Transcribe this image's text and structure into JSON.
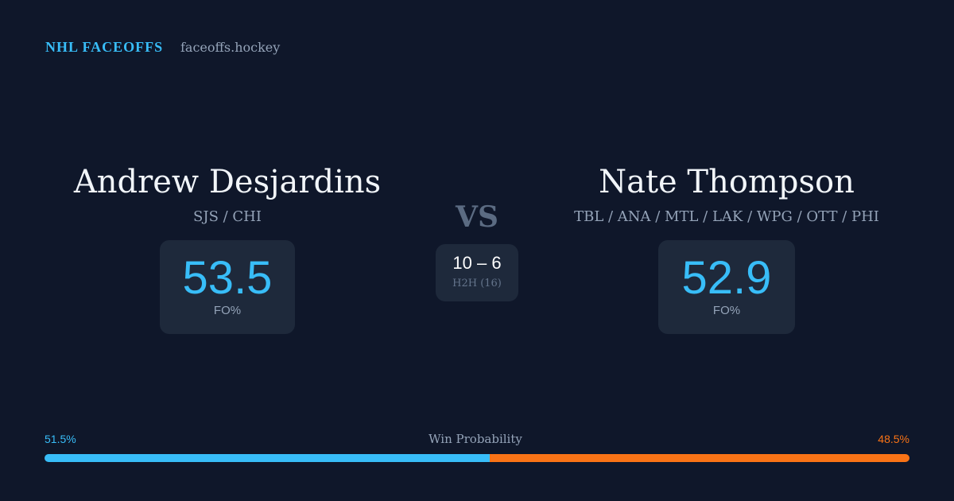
{
  "header": {
    "brand": "NHL FACEOFFS",
    "site": "faceoffs.hockey"
  },
  "players": [
    {
      "name": "Andrew Desjardins",
      "teams": "SJS / CHI",
      "fo_pct": "53.5",
      "fo_label": "FO%"
    },
    {
      "name": "Nate Thompson",
      "teams": "TBL / ANA / MTL / LAK / WPG / OTT / PHI",
      "fo_pct": "52.9",
      "fo_label": "FO%"
    }
  ],
  "versus": {
    "label": "VS",
    "record": "10 – 6",
    "h2h": "H2H (16)"
  },
  "win_probability": {
    "title": "Win Probability",
    "left": {
      "value": 51.5,
      "label": "51.5%",
      "color": "#38bdf8"
    },
    "right": {
      "value": 48.5,
      "label": "48.5%",
      "color": "#f97316"
    }
  }
}
